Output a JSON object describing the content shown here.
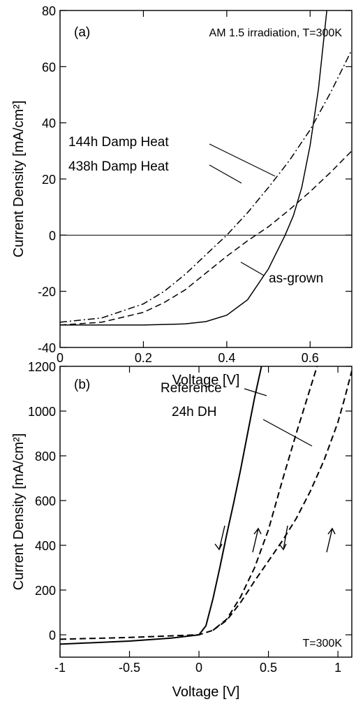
{
  "chart_data": [
    {
      "type": "line",
      "panel_label": "(a)",
      "condition_label": "AM 1.5 irradiation, T=300K",
      "xlabel": "Voltage  [V]",
      "ylabel": "Current Density  [mA/cm²]",
      "xlim": [
        0,
        0.7
      ],
      "ylim": [
        -40,
        80
      ],
      "x_ticks": [
        0,
        0.2,
        0.4,
        0.6
      ],
      "x_tick_labels": [
        "0",
        "0.2",
        "0.4",
        "0.6"
      ],
      "y_ticks": [
        -40,
        -20,
        0,
        20,
        40,
        60,
        80
      ],
      "y_tick_labels": [
        "-40",
        "-20",
        "0",
        "20",
        "40",
        "60",
        "80"
      ],
      "zero_line": 0,
      "series": [
        {
          "name": "as-grown",
          "style": "solid",
          "x": [
            0,
            0.1,
            0.2,
            0.3,
            0.35,
            0.4,
            0.45,
            0.5,
            0.52,
            0.54,
            0.56,
            0.58,
            0.6,
            0.62,
            0.64
          ],
          "y": [
            -32,
            -32,
            -32,
            -31.6,
            -30.8,
            -28.5,
            -23,
            -12,
            -6,
            0,
            7,
            17,
            32,
            52,
            80
          ]
        },
        {
          "name": "144h Damp Heat",
          "style": "dashdot",
          "x": [
            0,
            0.1,
            0.2,
            0.25,
            0.3,
            0.35,
            0.4,
            0.45,
            0.5,
            0.55,
            0.6,
            0.65,
            0.7
          ],
          "y": [
            -31,
            -29.5,
            -24.5,
            -20,
            -14,
            -7,
            0,
            8,
            17,
            26.5,
            37.5,
            51,
            66
          ]
        },
        {
          "name": "438h Damp Heat",
          "style": "dashed",
          "x": [
            0,
            0.1,
            0.2,
            0.25,
            0.3,
            0.35,
            0.4,
            0.45,
            0.47,
            0.5,
            0.55,
            0.6,
            0.65,
            0.7
          ],
          "y": [
            -32,
            -31,
            -27.5,
            -24,
            -19.5,
            -13.5,
            -7.5,
            -2,
            0,
            3,
            9,
            15.5,
            22.5,
            30
          ]
        }
      ],
      "annotations": [
        "144h Damp Heat",
        "438h Damp Heat",
        "as-grown"
      ]
    },
    {
      "type": "line",
      "panel_label": "(b)",
      "condition_label": "T=300K",
      "xlabel": "Voltage  [V]",
      "ylabel": "Current Density  [mA/cm²]",
      "xlim": [
        -1,
        1.1
      ],
      "ylim": [
        -100,
        1200
      ],
      "x_ticks": [
        -1,
        -0.5,
        0,
        0.5,
        1
      ],
      "x_tick_labels": [
        "-1",
        "-0.5",
        "0",
        "0.5",
        "1"
      ],
      "y_ticks": [
        0,
        200,
        400,
        600,
        800,
        1000,
        1200
      ],
      "y_tick_labels": [
        "0",
        "200",
        "400",
        "600",
        "800",
        "1000",
        "1200"
      ],
      "series": [
        {
          "name": "Reference",
          "style": "solid",
          "x": [
            -1,
            -0.5,
            -0.2,
            0,
            0.05,
            0.1,
            0.15,
            0.2,
            0.25,
            0.3,
            0.35,
            0.4,
            0.45
          ],
          "y": [
            -42,
            -28,
            -15,
            0,
            40,
            160,
            300,
            450,
            590,
            740,
            900,
            1060,
            1200
          ]
        },
        {
          "name": "24h DH (forward)",
          "style": "dashed",
          "x": [
            -1,
            -0.5,
            0,
            0.1,
            0.2,
            0.3,
            0.4,
            0.5,
            0.6,
            0.7,
            0.8,
            0.85
          ],
          "y": [
            -20,
            -12,
            0,
            20,
            70,
            170,
            300,
            470,
            690,
            900,
            1100,
            1200
          ]
        },
        {
          "name": "24h DH (reverse)",
          "style": "dashed",
          "x": [
            0.1,
            0.2,
            0.3,
            0.4,
            0.5,
            0.6,
            0.7,
            0.8,
            0.9,
            1.0,
            1.05,
            1.1
          ],
          "y": [
            20,
            65,
            145,
            240,
            330,
            420,
            520,
            640,
            780,
            950,
            1060,
            1180
          ]
        }
      ],
      "annotations": [
        "Reference",
        "24h DH",
        "T=300K"
      ]
    }
  ]
}
